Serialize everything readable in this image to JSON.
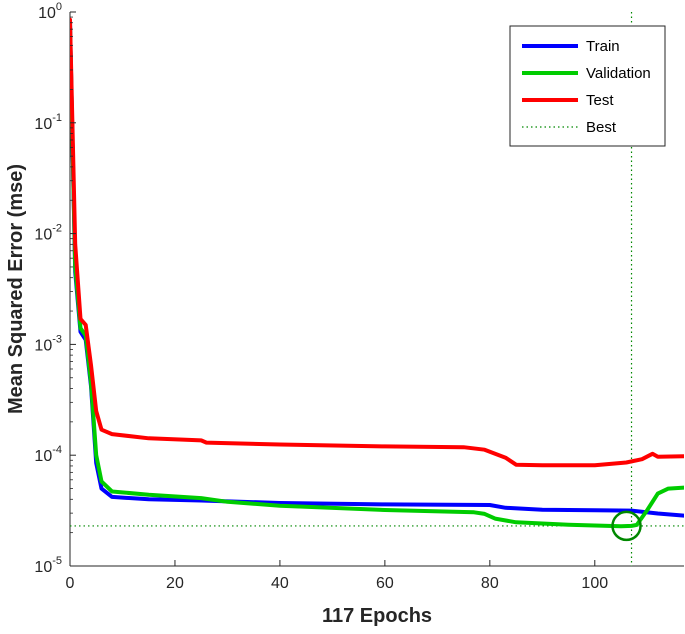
{
  "chart_data": {
    "type": "line",
    "title": "",
    "xlabel": "117 Epochs",
    "ylabel": "Mean Squared Error  (mse)",
    "xlim": [
      0,
      117
    ],
    "ylim": [
      1e-05,
      1
    ],
    "yscale": "log",
    "grid": false,
    "legend_position": "top-right",
    "x_ticks": [
      {
        "value": 0,
        "label": "0"
      },
      {
        "value": 20,
        "label": "20"
      },
      {
        "value": 40,
        "label": "40"
      },
      {
        "value": 60,
        "label": "60"
      },
      {
        "value": 80,
        "label": "80"
      },
      {
        "value": 100,
        "label": "100"
      }
    ],
    "y_ticks": [
      {
        "value": 1,
        "base": "10",
        "exp": "0"
      },
      {
        "value": 0.1,
        "base": "10",
        "exp": "-1"
      },
      {
        "value": 0.01,
        "base": "10",
        "exp": "-2"
      },
      {
        "value": 0.001,
        "base": "10",
        "exp": "-3"
      },
      {
        "value": 0.0001,
        "base": "10",
        "exp": "-4"
      },
      {
        "value": 1e-05,
        "base": "10",
        "exp": "-5"
      }
    ],
    "series": [
      {
        "name": "Train",
        "color": "#0000ff",
        "points": [
          [
            0,
            0.8
          ],
          [
            1,
            0.0045
          ],
          [
            2,
            0.0013
          ],
          [
            3,
            0.0011
          ],
          [
            4,
            0.00042
          ],
          [
            5,
            8.5e-05
          ],
          [
            6,
            5e-05
          ],
          [
            8,
            4.2e-05
          ],
          [
            15,
            4e-05
          ],
          [
            25,
            3.9e-05
          ],
          [
            40,
            3.7e-05
          ],
          [
            60,
            3.6e-05
          ],
          [
            80,
            3.55e-05
          ],
          [
            83,
            3.35e-05
          ],
          [
            90,
            3.22e-05
          ],
          [
            100,
            3.18e-05
          ],
          [
            107,
            3.16e-05
          ],
          [
            112,
            2.98e-05
          ],
          [
            117,
            2.85e-05
          ]
        ]
      },
      {
        "name": "Validation",
        "color": "#00cc00",
        "points": [
          [
            0,
            0.75
          ],
          [
            1,
            0.005
          ],
          [
            2,
            0.0014
          ],
          [
            3,
            0.0012
          ],
          [
            4,
            0.00045
          ],
          [
            5,
            0.0001
          ],
          [
            6,
            5.8e-05
          ],
          [
            8,
            4.7e-05
          ],
          [
            15,
            4.4e-05
          ],
          [
            25,
            4.1e-05
          ],
          [
            30,
            3.8e-05
          ],
          [
            40,
            3.5e-05
          ],
          [
            60,
            3.2e-05
          ],
          [
            77,
            3.05e-05
          ],
          [
            79,
            2.95e-05
          ],
          [
            81,
            2.68e-05
          ],
          [
            85,
            2.48e-05
          ],
          [
            95,
            2.36e-05
          ],
          [
            105,
            2.28e-05
          ],
          [
            107,
            2.3e-05
          ],
          [
            108,
            2.35e-05
          ],
          [
            110,
            3.2e-05
          ],
          [
            112,
            4.5e-05
          ],
          [
            114,
            5e-05
          ],
          [
            117,
            5.1e-05
          ]
        ]
      },
      {
        "name": "Test",
        "color": "#ff0000",
        "points": [
          [
            0,
            0.85
          ],
          [
            1,
            0.008
          ],
          [
            2,
            0.0017
          ],
          [
            3,
            0.0015
          ],
          [
            4,
            0.00065
          ],
          [
            5,
            0.00025
          ],
          [
            6,
            0.00017
          ],
          [
            8,
            0.000155
          ],
          [
            15,
            0.000142
          ],
          [
            25,
            0.000136
          ],
          [
            26,
            0.00013
          ],
          [
            40,
            0.000125
          ],
          [
            60,
            0.00012
          ],
          [
            75,
            0.000118
          ],
          [
            79,
            0.000112
          ],
          [
            83,
            9.5e-05
          ],
          [
            85,
            8.2e-05
          ],
          [
            90,
            8.1e-05
          ],
          [
            100,
            8.1e-05
          ],
          [
            106,
            8.6e-05
          ],
          [
            109,
            9.2e-05
          ],
          [
            111,
            0.000103
          ],
          [
            112,
            9.7e-05
          ],
          [
            117,
            9.8e-05
          ]
        ]
      }
    ],
    "best": {
      "name": "Best",
      "epoch": 107,
      "value": 2.3e-05,
      "color": "#008800"
    }
  }
}
